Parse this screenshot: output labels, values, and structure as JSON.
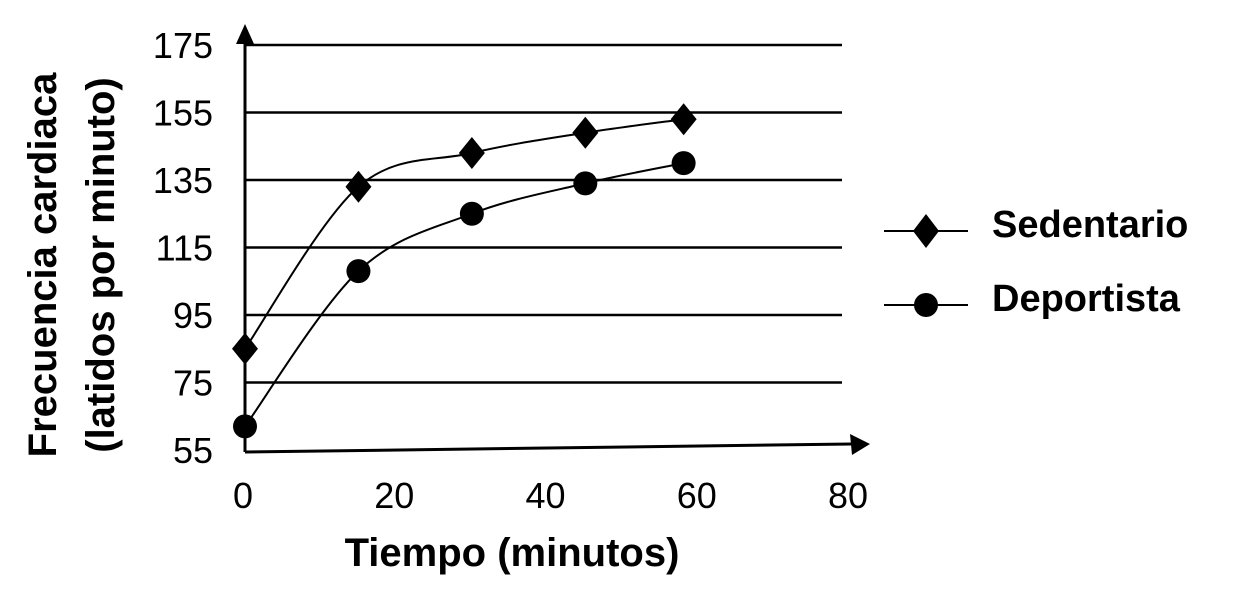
{
  "chart_data": {
    "type": "line",
    "title": "",
    "xlabel": "Tiempo (minutos)",
    "ylabel_line1": "Frecuencia cardiaca",
    "ylabel_line2": "(latidos por minuto)",
    "xlim": [
      0,
      80
    ],
    "ylim": [
      55,
      175
    ],
    "x_ticks": [
      0,
      20,
      40,
      60,
      80
    ],
    "y_ticks": [
      55,
      75,
      95,
      115,
      135,
      155,
      175
    ],
    "gridlines": "horizontal",
    "legend_position": "right",
    "series": [
      {
        "name": "Sedentario",
        "marker": "diamond",
        "x": [
          0,
          15,
          30,
          45,
          58
        ],
        "y": [
          85,
          133,
          143,
          149,
          153
        ]
      },
      {
        "name": "Deportista",
        "marker": "circle",
        "x": [
          0,
          15,
          30,
          45,
          58
        ],
        "y": [
          62,
          108,
          125,
          134,
          140
        ]
      }
    ],
    "colors": {
      "line": "#000000",
      "marker": "#000000",
      "grid": "#000000"
    }
  }
}
